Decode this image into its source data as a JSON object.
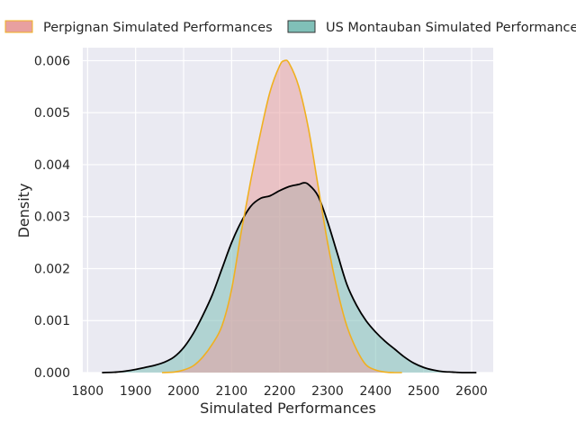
{
  "chart_data": {
    "type": "area",
    "xlabel": "Simulated Performances",
    "ylabel": "Density",
    "xlim": [
      1790,
      2645
    ],
    "ylim": [
      0,
      0.00625
    ],
    "xticks": [
      1800,
      1900,
      2000,
      2100,
      2200,
      2300,
      2400,
      2500,
      2600
    ],
    "xtick_labels": [
      "1800",
      "1900",
      "2000",
      "2100",
      "2200",
      "2300",
      "2400",
      "2500",
      "2600"
    ],
    "yticks": [
      0,
      0.001,
      0.002,
      0.003,
      0.004,
      0.005,
      0.006
    ],
    "ytick_labels": [
      "0.000",
      "0.001",
      "0.002",
      "0.003",
      "0.004",
      "0.005",
      "0.006"
    ],
    "grid": true,
    "legend_position": "top, above plot, horizontal",
    "series": [
      {
        "name": "Perpignan Simulated Performances",
        "fill": "#e8a0a0",
        "stroke": "#f0b020",
        "x": [
          1955,
          1980,
          2000,
          2020,
          2040,
          2060,
          2080,
          2100,
          2120,
          2140,
          2160,
          2180,
          2200,
          2210,
          2220,
          2240,
          2260,
          2280,
          2300,
          2320,
          2340,
          2360,
          2380,
          2400,
          2420,
          2440,
          2455
        ],
        "y": [
          0,
          1e-05,
          5e-05,
          0.00013,
          0.0003,
          0.00055,
          0.0009,
          0.0016,
          0.0027,
          0.0037,
          0.0046,
          0.0054,
          0.0059,
          0.006,
          0.00595,
          0.0055,
          0.0047,
          0.0036,
          0.0025,
          0.0016,
          0.0009,
          0.00045,
          0.00015,
          5e-05,
          1e-05,
          0,
          0
        ]
      },
      {
        "name": "US Montauban Simulated Performances",
        "fill": "#80c0b8",
        "stroke": "#000000",
        "x": [
          1830,
          1860,
          1880,
          1900,
          1920,
          1940,
          1960,
          1980,
          2000,
          2020,
          2040,
          2060,
          2080,
          2100,
          2120,
          2140,
          2160,
          2180,
          2200,
          2220,
          2240,
          2250,
          2260,
          2280,
          2300,
          2320,
          2340,
          2360,
          2380,
          2400,
          2420,
          2440,
          2460,
          2480,
          2500,
          2520,
          2540,
          2560,
          2580,
          2610
        ],
        "y": [
          0,
          1e-05,
          3e-05,
          6e-05,
          0.0001,
          0.00014,
          0.0002,
          0.0003,
          0.00048,
          0.00075,
          0.0011,
          0.0015,
          0.002,
          0.0025,
          0.0029,
          0.0032,
          0.00335,
          0.0034,
          0.0035,
          0.00358,
          0.00362,
          0.00365,
          0.00362,
          0.0034,
          0.0029,
          0.0023,
          0.0017,
          0.0013,
          0.001,
          0.00078,
          0.0006,
          0.00045,
          0.0003,
          0.00018,
          0.0001,
          5e-05,
          2e-05,
          1e-05,
          0,
          0
        ]
      }
    ]
  }
}
